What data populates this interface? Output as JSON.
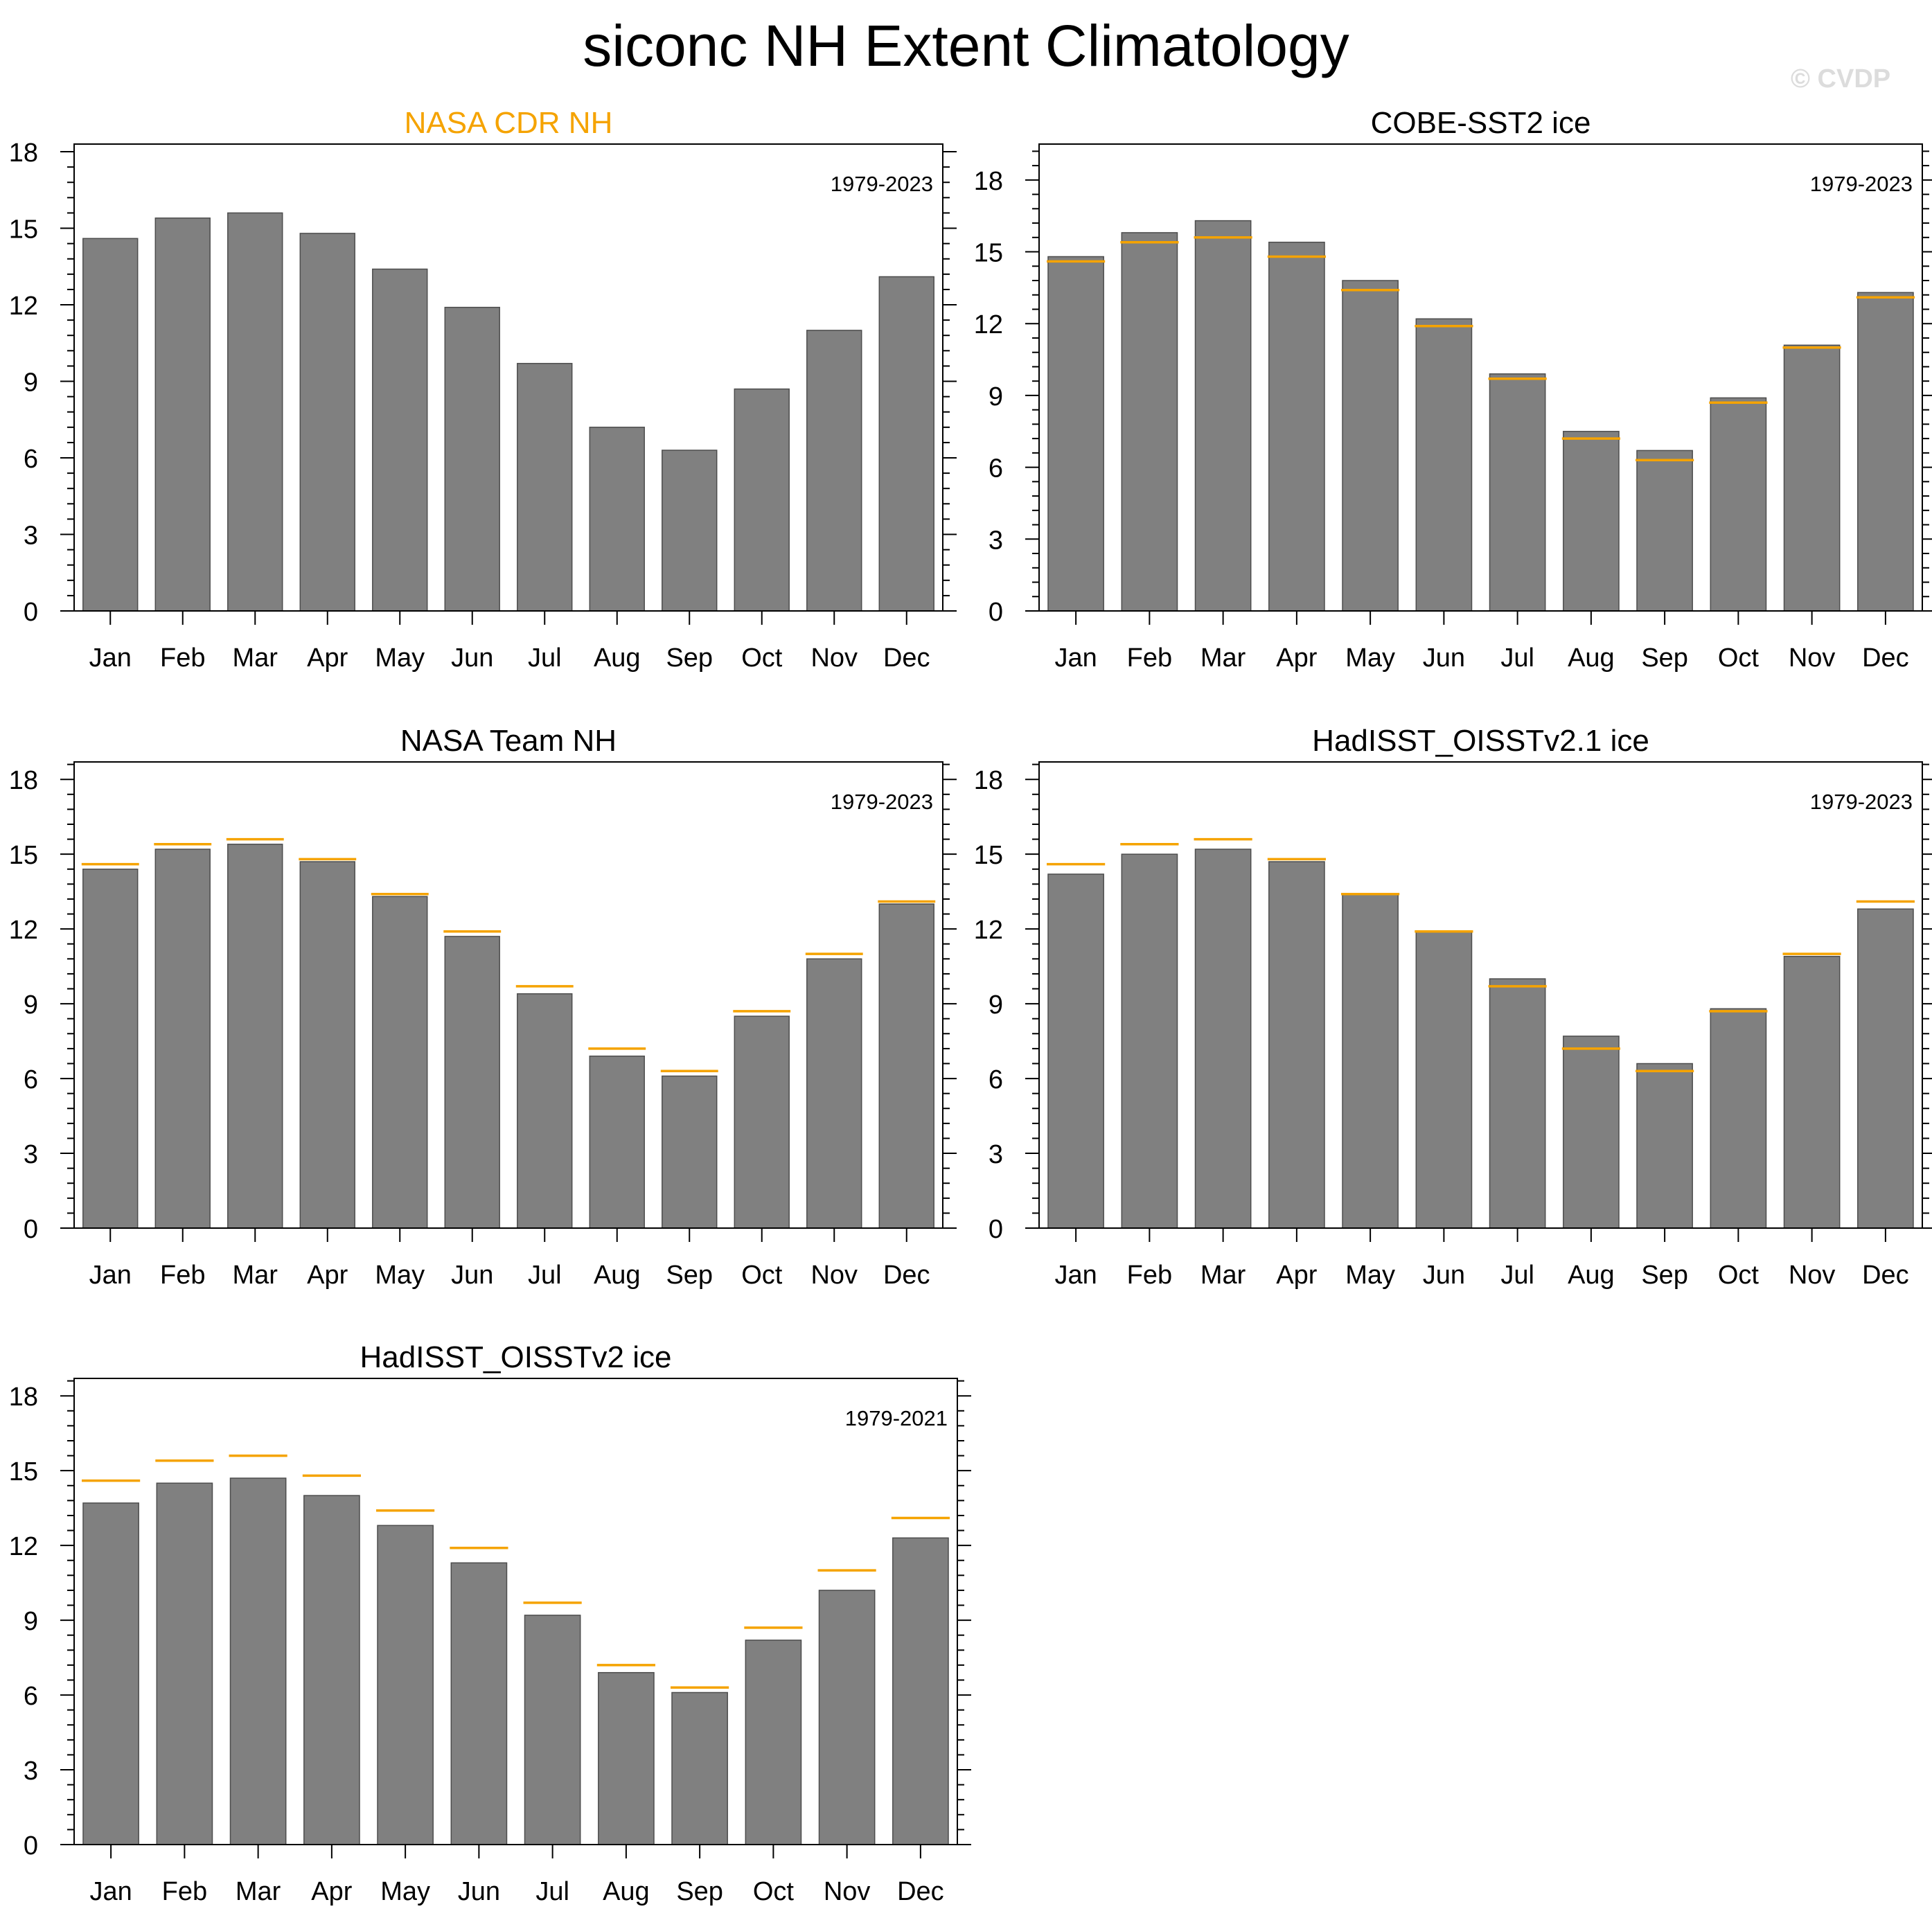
{
  "title": "siconc NH Extent Climatology",
  "watermark": "© CVDP",
  "colors": {
    "bar": "#808080",
    "bar_edge": "#4d4d4d",
    "reference_line": "#f5a300",
    "reference_title": "#f5a300",
    "axis": "#000000"
  },
  "chart_data": [
    {
      "type": "bar",
      "title": "NASA CDR NH",
      "is_reference": true,
      "period": "1979-2023",
      "categories": [
        "Jan",
        "Feb",
        "Mar",
        "Apr",
        "May",
        "Jun",
        "Jul",
        "Aug",
        "Sep",
        "Oct",
        "Nov",
        "Dec"
      ],
      "values": [
        14.6,
        15.4,
        15.6,
        14.8,
        13.4,
        11.9,
        9.7,
        7.2,
        6.3,
        8.7,
        11.0,
        13.1
      ],
      "yticks": [
        0,
        3,
        6,
        9,
        12,
        15,
        18
      ],
      "ylim": [
        0,
        18.3
      ]
    },
    {
      "type": "bar",
      "title": "COBE-SST2 ice",
      "is_reference": false,
      "period": "1979-2023",
      "categories": [
        "Jan",
        "Feb",
        "Mar",
        "Apr",
        "May",
        "Jun",
        "Jul",
        "Aug",
        "Sep",
        "Oct",
        "Nov",
        "Dec"
      ],
      "values": [
        14.8,
        15.8,
        16.3,
        15.4,
        13.8,
        12.2,
        9.9,
        7.5,
        6.7,
        8.9,
        11.1,
        13.3
      ],
      "reference_values": [
        14.6,
        15.4,
        15.6,
        14.8,
        13.4,
        11.9,
        9.7,
        7.2,
        6.3,
        8.7,
        11.0,
        13.1
      ],
      "yticks": [
        0,
        3,
        6,
        9,
        12,
        15,
        18
      ],
      "ylim": [
        0,
        19.5
      ]
    },
    {
      "type": "bar",
      "title": "NASA Team NH",
      "is_reference": false,
      "period": "1979-2023",
      "categories": [
        "Jan",
        "Feb",
        "Mar",
        "Apr",
        "May",
        "Jun",
        "Jul",
        "Aug",
        "Sep",
        "Oct",
        "Nov",
        "Dec"
      ],
      "values": [
        14.4,
        15.2,
        15.4,
        14.7,
        13.3,
        11.7,
        9.4,
        6.9,
        6.1,
        8.5,
        10.8,
        13.0
      ],
      "reference_values": [
        14.6,
        15.4,
        15.6,
        14.8,
        13.4,
        11.9,
        9.7,
        7.2,
        6.3,
        8.7,
        11.0,
        13.1
      ],
      "yticks": [
        0,
        3,
        6,
        9,
        12,
        15,
        18
      ],
      "ylim": [
        0,
        18.7
      ]
    },
    {
      "type": "bar",
      "title": "HadISST_OISSTv2.1 ice",
      "is_reference": false,
      "period": "1979-2023",
      "categories": [
        "Jan",
        "Feb",
        "Mar",
        "Apr",
        "May",
        "Jun",
        "Jul",
        "Aug",
        "Sep",
        "Oct",
        "Nov",
        "Dec"
      ],
      "values": [
        14.2,
        15.0,
        15.2,
        14.7,
        13.4,
        11.9,
        10.0,
        7.7,
        6.6,
        8.8,
        10.9,
        12.8
      ],
      "reference_values": [
        14.6,
        15.4,
        15.6,
        14.8,
        13.4,
        11.9,
        9.7,
        7.2,
        6.3,
        8.7,
        11.0,
        13.1
      ],
      "yticks": [
        0,
        3,
        6,
        9,
        12,
        15,
        18
      ],
      "ylim": [
        0,
        18.7
      ]
    },
    {
      "type": "bar",
      "title": "HadISST_OISSTv2 ice",
      "is_reference": false,
      "period": "1979-2021",
      "categories": [
        "Jan",
        "Feb",
        "Mar",
        "Apr",
        "May",
        "Jun",
        "Jul",
        "Aug",
        "Sep",
        "Oct",
        "Nov",
        "Dec"
      ],
      "values": [
        13.7,
        14.5,
        14.7,
        14.0,
        12.8,
        11.3,
        9.2,
        6.9,
        6.1,
        8.2,
        10.2,
        12.3
      ],
      "reference_values": [
        14.6,
        15.4,
        15.6,
        14.8,
        13.4,
        11.9,
        9.7,
        7.2,
        6.3,
        8.7,
        11.0,
        13.1
      ],
      "yticks": [
        0,
        3,
        6,
        9,
        12,
        15,
        18
      ],
      "ylim": [
        0,
        18.7
      ]
    }
  ]
}
